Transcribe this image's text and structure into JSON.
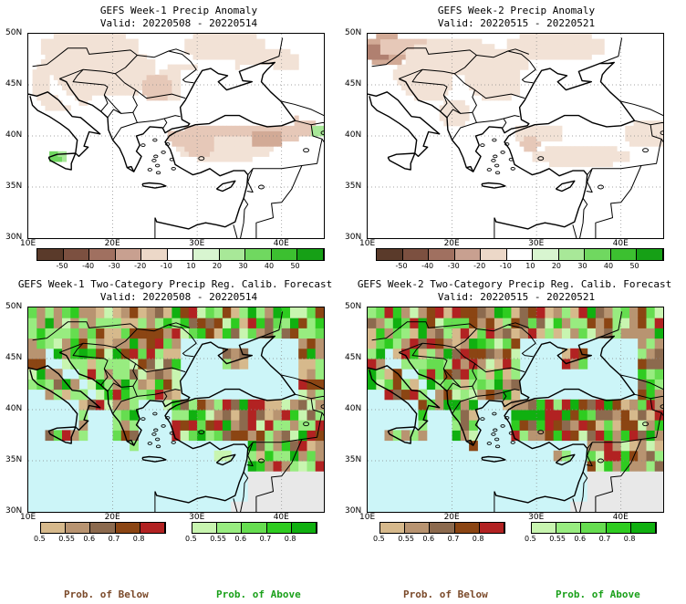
{
  "panels": [
    {
      "id": "w1anom",
      "title": "GEFS Week-1 Precip Anomaly",
      "valid": "Valid: 20220508 - 20220514",
      "type": "anomaly"
    },
    {
      "id": "w2anom",
      "title": "GEFS Week-2 Precip Anomaly",
      "valid": "Valid: 20220515 - 20220521",
      "type": "anomaly"
    },
    {
      "id": "w1prob",
      "title": "GEFS Week-1 Two-Category Precip Reg. Calib. Forecast",
      "valid": "Valid: 20220508 - 20220514",
      "type": "prob"
    },
    {
      "id": "w2prob",
      "title": "GEFS Week-2 Two-Category Precip Reg. Calib. Forecast",
      "valid": "Valid: 20220515 - 20220521",
      "type": "prob"
    }
  ],
  "lat_ticks": [
    "50N",
    "45N",
    "40N",
    "35N",
    "30N"
  ],
  "lon_ticks": [
    "10E",
    "20E",
    "30E",
    "40E"
  ],
  "anomaly_colorbar": {
    "labels": [
      "-50",
      "-40",
      "-30",
      "-20",
      "-10",
      "10",
      "20",
      "30",
      "40",
      "50"
    ],
    "colors": [
      "#5a3a2a",
      "#7c5040",
      "#a07060",
      "#c8a090",
      "#ecd8c8",
      "#ffffff",
      "#d8f5d0",
      "#a8e898",
      "#70d860",
      "#3cc030",
      "#16a016"
    ]
  },
  "prob_below_colorbar": {
    "labels": [
      "0.5",
      "0.55",
      "0.6",
      "0.7",
      "0.8"
    ],
    "colors": [
      "#d6b98c",
      "#b89471",
      "#8c6a4e",
      "#8b4513",
      "#b22222"
    ]
  },
  "prob_above_colorbar": {
    "labels": [
      "0.5",
      "0.55",
      "0.6",
      "0.7",
      "0.8"
    ],
    "colors": [
      "#c8f5b0",
      "#98ec80",
      "#66dd50",
      "#2ecc20",
      "#10b010"
    ]
  },
  "legend_below": "Prob. of Below",
  "legend_above": "Prob. of Above",
  "colors": {
    "sea": "#ccf5f8",
    "land_na": "#e8e8e8",
    "brown_label": "#7b4a2a",
    "green_label": "#1aa01a"
  }
}
